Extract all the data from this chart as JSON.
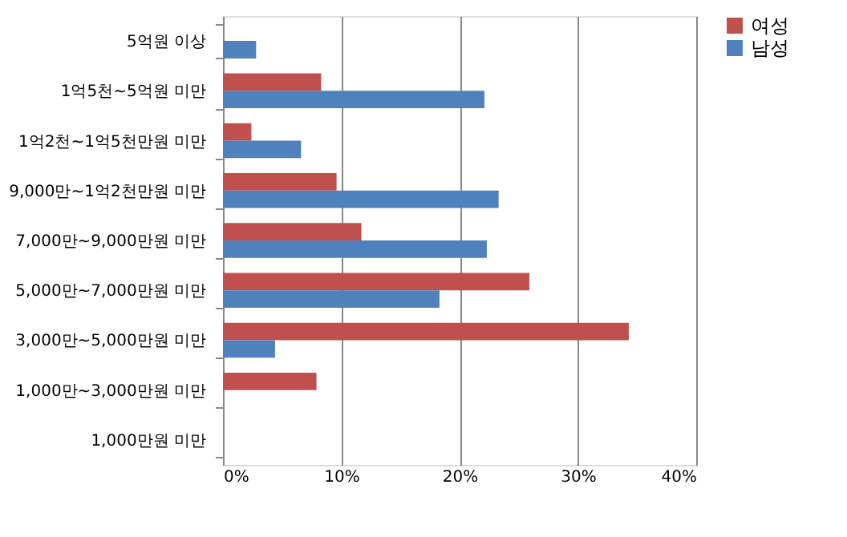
{
  "chart_data": {
    "type": "bar",
    "orientation": "horizontal",
    "categories": [
      "5억원 이상",
      "1억5천~5억원 미만",
      "1억2천~1억5천만원 미만",
      "9,000만~1억2천만원 미만",
      "7,000만~9,000만원 미만",
      "5,000만~7,000만원 미만",
      "3,000만~5,000만원 미만",
      "1,000만~3,000만원 미만",
      "1,000만원 미만"
    ],
    "series": [
      {
        "name": "여성",
        "color": "#c0504d",
        "values": [
          0,
          8.3,
          2.4,
          9.6,
          11.7,
          25.9,
          34.3,
          7.9,
          0
        ]
      },
      {
        "name": "남성",
        "color": "#4f81bd",
        "values": [
          2.8,
          22.1,
          6.6,
          23.3,
          22.3,
          18.3,
          4.4,
          0,
          0
        ]
      }
    ],
    "xlim": [
      0,
      40
    ],
    "xticks": [
      {
        "value": 0,
        "label": "0%"
      },
      {
        "value": 10,
        "label": "10%"
      },
      {
        "value": 20,
        "label": "20%"
      },
      {
        "value": 30,
        "label": "30%"
      },
      {
        "value": 40,
        "label": "40%"
      }
    ],
    "grid": "x",
    "legend": "right"
  }
}
